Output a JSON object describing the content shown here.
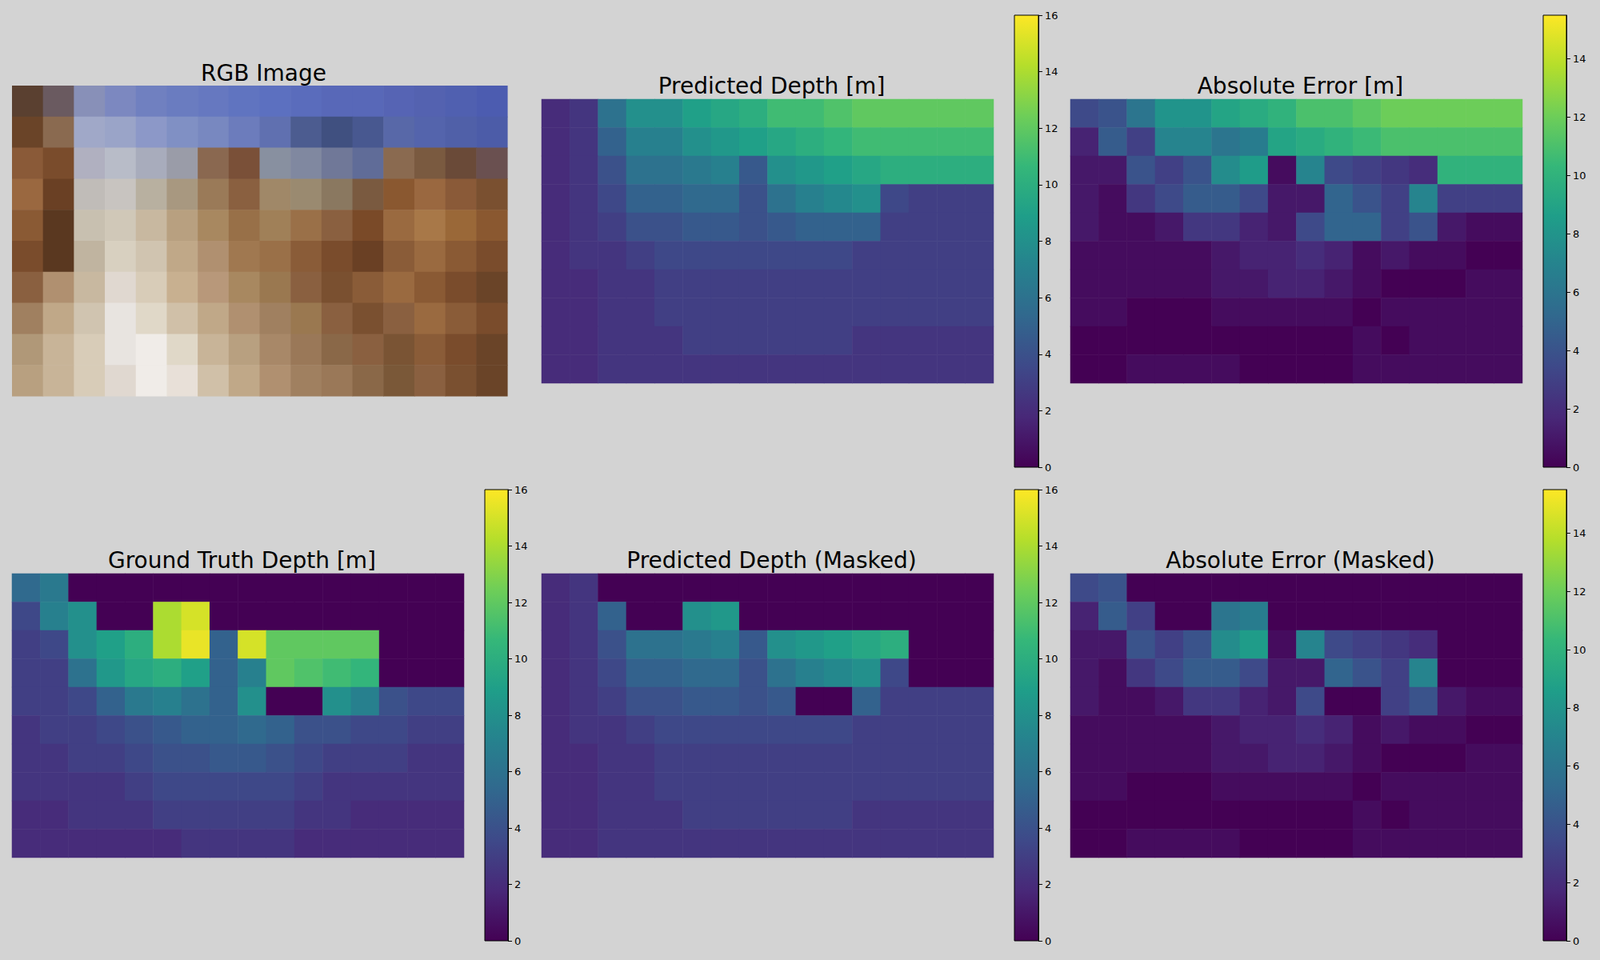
{
  "chart_data": [
    {
      "type": "image",
      "title": "RGB Image",
      "tick_labels": false,
      "colors": [
        [
          "#5a4030",
          "#6a5a60",
          "#8890b8",
          "#7c88c0",
          "#7080c0",
          "#6a7cc0",
          "#6678c0",
          "#6074c0",
          "#5c70c0",
          "#5a6cbc",
          "#5868b8",
          "#5868b8",
          "#5664b4",
          "#5462b0",
          "#5060b0",
          "#4c5cb0"
        ],
        [
          "#6a4428",
          "#8a6a50",
          "#a0a8c8",
          "#9aa4c8",
          "#8c98c8",
          "#8090c4",
          "#7888c0",
          "#6c7cbc",
          "#6070b0",
          "#4c5c90",
          "#405080",
          "#485890",
          "#5868a8",
          "#5464ac",
          "#5060a8",
          "#4c5ca8"
        ],
        [
          "#8a5a38",
          "#7a4c2c",
          "#b0b0c0",
          "#b8bcc8",
          "#a8acbc",
          "#9a9ca8",
          "#8a6850",
          "#7a5038",
          "#8890a0",
          "#8088a0",
          "#707898",
          "#606c98",
          "#8a6a50",
          "#7a5a40",
          "#6a4a38",
          "#6a5050"
        ],
        [
          "#9a6840",
          "#6a4024",
          "#c0bcb8",
          "#c8c4c0",
          "#b8b0a0",
          "#a89880",
          "#9a7a58",
          "#8a6040",
          "#a08868",
          "#9a8a70",
          "#8a7860",
          "#7a5a40",
          "#8a5830",
          "#9a6840",
          "#8a5a38",
          "#7a5030"
        ],
        [
          "#8a5a34",
          "#5a3820",
          "#c8c0b0",
          "#d0c8b8",
          "#c8b8a0",
          "#b8a080",
          "#a88860",
          "#987048",
          "#a08058",
          "#9a7048",
          "#8a6040",
          "#7a4a28",
          "#9a6a40",
          "#a87848",
          "#9a6838",
          "#8a5830"
        ],
        [
          "#7a4c2c",
          "#5a3820",
          "#c0b4a0",
          "#d8d0c0",
          "#d0c4b0",
          "#c0a888",
          "#b09070",
          "#a07850",
          "#9a7048",
          "#8a5c38",
          "#7a4c2c",
          "#6a4024",
          "#8a5c38",
          "#9a6a40",
          "#8a5a34",
          "#7a4c2c"
        ],
        [
          "#8a6040",
          "#b09070",
          "#c8b8a0",
          "#e0d8d0",
          "#d8ccb8",
          "#c8b090",
          "#b8987a",
          "#a88860",
          "#9a7850",
          "#8a6040",
          "#7a5030",
          "#8a5c38",
          "#9a6a40",
          "#8a5a34",
          "#7a4c2c",
          "#6a4428"
        ],
        [
          "#a08060",
          "#c0a888",
          "#d0c4b0",
          "#e8e4e0",
          "#e0d8c8",
          "#d0c0a8",
          "#c0a888",
          "#b09070",
          "#a08060",
          "#9a7850",
          "#8a6040",
          "#7a5030",
          "#8a6040",
          "#9a6a40",
          "#8a5c38",
          "#7a4c2c"
        ],
        [
          "#b09878",
          "#c8b498",
          "#d8ccb8",
          "#e8e4e0",
          "#f0ece8",
          "#e0d8c8",
          "#c8b498",
          "#b8a080",
          "#a88868",
          "#9a7858",
          "#8a6848",
          "#8a6040",
          "#7a5434",
          "#8a5c38",
          "#7a4c2c",
          "#6a4428"
        ],
        [
          "#b8a080",
          "#c8b498",
          "#d8ccb8",
          "#e0d8d0",
          "#f0ece8",
          "#e8e0d8",
          "#d0c0a8",
          "#c0a888",
          "#b09070",
          "#a08060",
          "#9a7858",
          "#8a6848",
          "#7a5838",
          "#8a6040",
          "#7a5030",
          "#6a4428"
        ]
      ]
    },
    {
      "type": "heatmap",
      "title": "Predicted Depth [m]",
      "tick_labels": false,
      "colorbar": {
        "range": [
          0,
          16
        ],
        "ticks": [
          0,
          2,
          4,
          6,
          8,
          10,
          12,
          14,
          16
        ]
      },
      "cells": [
        [
          2,
          2.5,
          6,
          8,
          8,
          9,
          9.5,
          10,
          11,
          11,
          11.5,
          12,
          12,
          12,
          12,
          12
        ],
        [
          2,
          2.5,
          5,
          7,
          7,
          8,
          8.5,
          9,
          9.5,
          10,
          10.5,
          11,
          11,
          11,
          11,
          11
        ],
        [
          2,
          2.5,
          4,
          6,
          6,
          6.5,
          7,
          4.5,
          8,
          8.5,
          9,
          9.5,
          10,
          10,
          10,
          10
        ],
        [
          2,
          2.5,
          3.5,
          5,
          5,
          5.5,
          5.5,
          4,
          6,
          7,
          7.5,
          8,
          3.5,
          3,
          3,
          3
        ],
        [
          2,
          2.5,
          3,
          4,
          4,
          4.5,
          4.5,
          4,
          4.5,
          5,
          5,
          5,
          3,
          3,
          3,
          3
        ],
        [
          2,
          2.5,
          2.5,
          3,
          3.5,
          3.5,
          3.5,
          3.5,
          3.5,
          3.5,
          3.5,
          3,
          3,
          3,
          3,
          3
        ],
        [
          2,
          2,
          2.5,
          2.5,
          3,
          3,
          3,
          3,
          3,
          3,
          3,
          3,
          3,
          3,
          3,
          3
        ],
        [
          2,
          2,
          2.5,
          2.5,
          3,
          3,
          3,
          3,
          3,
          3,
          3,
          3,
          3,
          3,
          3,
          3
        ],
        [
          2,
          2,
          2.5,
          2.5,
          2.5,
          3,
          3,
          3,
          3,
          3,
          3,
          2.5,
          2.5,
          2.5,
          2.5,
          2.5
        ],
        [
          2,
          2,
          2.5,
          2.5,
          2.5,
          2.5,
          2.5,
          2.5,
          2.5,
          2.5,
          2.5,
          2.5,
          2.5,
          2.5,
          2.5,
          2.5
        ]
      ]
    },
    {
      "type": "heatmap",
      "title": "Absolute Error [m]",
      "tick_labels": false,
      "colorbar": {
        "range": [
          0,
          15.5
        ],
        "ticks": [
          0,
          2,
          4,
          6,
          8,
          10,
          12,
          14
        ]
      },
      "cells": [
        [
          3.5,
          4,
          6,
          8,
          8,
          9,
          9.5,
          10,
          11,
          11,
          11.5,
          12,
          12,
          12,
          12,
          12
        ],
        [
          1.5,
          4.5,
          3,
          7,
          7,
          6,
          6.5,
          9,
          9.5,
          10,
          10.5,
          11,
          11,
          11,
          11,
          11
        ],
        [
          1,
          1,
          4,
          3,
          4,
          7.5,
          8.5,
          0.5,
          7,
          3.5,
          3,
          2.5,
          2,
          10,
          10,
          10
        ],
        [
          1,
          0.5,
          2.5,
          3.5,
          4.5,
          4.5,
          3.5,
          1,
          1,
          5,
          4,
          3,
          7,
          3,
          3,
          3
        ],
        [
          1,
          0.5,
          0.5,
          1,
          2.5,
          2.5,
          1.5,
          1,
          3.5,
          5,
          5,
          3,
          4,
          1,
          0.5,
          0.5
        ],
        [
          0.5,
          0.5,
          0.5,
          0.5,
          0.5,
          1,
          1.5,
          1.5,
          2,
          1.5,
          0.5,
          1,
          0.5,
          0.5,
          0,
          0
        ],
        [
          0.5,
          0.5,
          0.5,
          0.5,
          0.5,
          1,
          1,
          1.5,
          1.5,
          1,
          0.5,
          0,
          0,
          0,
          0.5,
          0.5
        ],
        [
          0.5,
          0.5,
          0,
          0,
          0,
          0.5,
          0.5,
          0.5,
          0.5,
          0.5,
          0,
          0.5,
          0.5,
          0.5,
          0.5,
          0.5
        ],
        [
          0,
          0,
          0,
          0,
          0,
          0,
          0,
          0,
          0,
          0,
          0.5,
          0,
          0.5,
          0.5,
          0.5,
          0.5
        ],
        [
          0,
          0,
          0.5,
          0.5,
          0.5,
          0.5,
          0,
          0,
          0,
          0,
          0.5,
          0.5,
          0.5,
          0.5,
          0.5,
          0.5
        ]
      ]
    },
    {
      "type": "heatmap",
      "title": "Ground Truth Depth [m]",
      "tick_labels": false,
      "colorbar": {
        "range": [
          0,
          16
        ],
        "ticks": [
          0,
          2,
          4,
          6,
          8,
          10,
          12,
          14,
          16
        ]
      },
      "cells": [
        [
          5.5,
          6.5,
          0,
          0,
          0,
          0,
          0,
          0,
          0,
          0,
          0,
          0,
          0,
          0,
          0,
          0
        ],
        [
          3.5,
          7,
          8,
          0,
          0,
          14,
          15,
          0,
          0,
          0,
          0,
          0,
          0,
          0,
          0,
          0
        ],
        [
          3,
          3.5,
          8,
          9,
          10,
          14,
          15.5,
          5,
          15,
          12,
          12,
          12,
          12,
          0,
          0,
          0
        ],
        [
          3,
          3,
          6,
          8.5,
          9.5,
          10,
          9,
          5,
          7,
          12,
          11.5,
          11,
          10.5,
          0,
          0,
          0
        ],
        [
          3,
          3,
          3.5,
          5,
          6.5,
          7,
          6,
          5,
          8,
          0,
          0,
          8,
          7,
          4,
          3.5,
          3.5
        ],
        [
          2.5,
          3,
          3,
          3.5,
          4,
          4.5,
          5,
          5,
          5.5,
          5,
          4,
          4,
          3.5,
          3.5,
          3,
          3
        ],
        [
          2.5,
          2.5,
          3,
          3,
          3.5,
          4,
          4,
          4.5,
          4.5,
          4,
          3.5,
          3,
          3,
          3,
          2.5,
          2.5
        ],
        [
          2.5,
          2.5,
          2.5,
          2.5,
          3,
          3.5,
          3.5,
          3.5,
          3.5,
          3.5,
          3,
          2.5,
          2.5,
          2.5,
          2.5,
          2.5
        ],
        [
          2,
          2,
          2.5,
          2.5,
          2.5,
          3,
          3,
          3,
          3,
          3,
          2.5,
          2.5,
          2,
          2,
          2,
          2
        ],
        [
          2,
          2,
          2,
          2,
          2,
          2,
          2.5,
          2.5,
          2.5,
          2.5,
          2,
          2,
          2,
          2,
          2,
          2
        ]
      ]
    },
    {
      "type": "heatmap",
      "title": "Predicted Depth (Masked)",
      "tick_labels": false,
      "colorbar": {
        "range": [
          0,
          16
        ],
        "ticks": [
          0,
          2,
          4,
          6,
          8,
          10,
          12,
          14,
          16
        ]
      },
      "cells": [
        [
          2,
          2.5,
          0,
          0,
          0,
          0,
          0,
          0,
          0,
          0,
          0,
          0,
          0,
          0,
          0,
          0
        ],
        [
          2,
          2.5,
          5,
          0,
          0,
          8,
          8.5,
          0,
          0,
          0,
          0,
          0,
          0,
          0,
          0,
          0
        ],
        [
          2,
          2.5,
          4,
          6,
          6,
          6.5,
          7,
          4.5,
          8,
          8.5,
          9,
          9.5,
          10,
          0,
          0,
          0
        ],
        [
          2,
          2.5,
          3.5,
          5,
          5,
          5.5,
          5.5,
          4,
          6,
          7,
          7.5,
          8,
          3.5,
          0,
          0,
          0
        ],
        [
          2,
          2.5,
          3,
          4,
          4,
          4.5,
          4.5,
          4,
          4.5,
          0,
          0,
          5,
          3,
          3,
          3,
          3
        ],
        [
          2,
          2.5,
          2.5,
          3,
          3.5,
          3.5,
          3.5,
          3.5,
          3.5,
          3.5,
          3.5,
          3,
          3,
          3,
          3,
          3
        ],
        [
          2,
          2,
          2.5,
          2.5,
          3,
          3,
          3,
          3,
          3,
          3,
          3,
          3,
          3,
          3,
          3,
          3
        ],
        [
          2,
          2,
          2.5,
          2.5,
          3,
          3,
          3,
          3,
          3,
          3,
          3,
          3,
          3,
          3,
          3,
          3
        ],
        [
          2,
          2,
          2.5,
          2.5,
          2.5,
          3,
          3,
          3,
          3,
          3,
          3,
          2.5,
          2.5,
          2.5,
          2.5,
          2.5
        ],
        [
          2,
          2,
          2.5,
          2.5,
          2.5,
          2.5,
          2.5,
          2.5,
          2.5,
          2.5,
          2.5,
          2.5,
          2.5,
          2.5,
          2.5,
          2.5
        ]
      ]
    },
    {
      "type": "heatmap",
      "title": "Absolute Error (Masked)",
      "tick_labels": false,
      "colorbar": {
        "range": [
          0,
          15.5
        ],
        "ticks": [
          0,
          2,
          4,
          6,
          8,
          10,
          12,
          14
        ]
      },
      "cells": [
        [
          3.5,
          4,
          0,
          0,
          0,
          0,
          0,
          0,
          0,
          0,
          0,
          0,
          0,
          0,
          0,
          0
        ],
        [
          1.5,
          4.5,
          3,
          0,
          0,
          6,
          6.5,
          0,
          0,
          0,
          0,
          0,
          0,
          0,
          0,
          0
        ],
        [
          1,
          1,
          4,
          3,
          4,
          7.5,
          8.5,
          0.5,
          7,
          3.5,
          3,
          2.5,
          2,
          0,
          0,
          0
        ],
        [
          1,
          0.5,
          2.5,
          3.5,
          4.5,
          4.5,
          3.5,
          1,
          1,
          5,
          4,
          3,
          7,
          0,
          0,
          0
        ],
        [
          1,
          0.5,
          0.5,
          1,
          2.5,
          2.5,
          1.5,
          1,
          3.5,
          0,
          0,
          3,
          4,
          1,
          0.5,
          0.5
        ],
        [
          0.5,
          0.5,
          0.5,
          0.5,
          0.5,
          1,
          1.5,
          1.5,
          2,
          1.5,
          0.5,
          1,
          0.5,
          0.5,
          0,
          0
        ],
        [
          0.5,
          0.5,
          0.5,
          0.5,
          0.5,
          1,
          1,
          1.5,
          1.5,
          1,
          0.5,
          0,
          0,
          0,
          0.5,
          0.5
        ],
        [
          0.5,
          0.5,
          0,
          0,
          0,
          0.5,
          0.5,
          0.5,
          0.5,
          0.5,
          0,
          0.5,
          0.5,
          0.5,
          0.5,
          0.5
        ],
        [
          0,
          0,
          0,
          0,
          0,
          0,
          0,
          0,
          0,
          0,
          0.5,
          0,
          0.5,
          0.5,
          0.5,
          0.5
        ],
        [
          0,
          0,
          0.5,
          0.5,
          0.5,
          0.5,
          0,
          0,
          0,
          0,
          0.5,
          0.5,
          0.5,
          0.5,
          0.5,
          0.5
        ]
      ]
    }
  ]
}
